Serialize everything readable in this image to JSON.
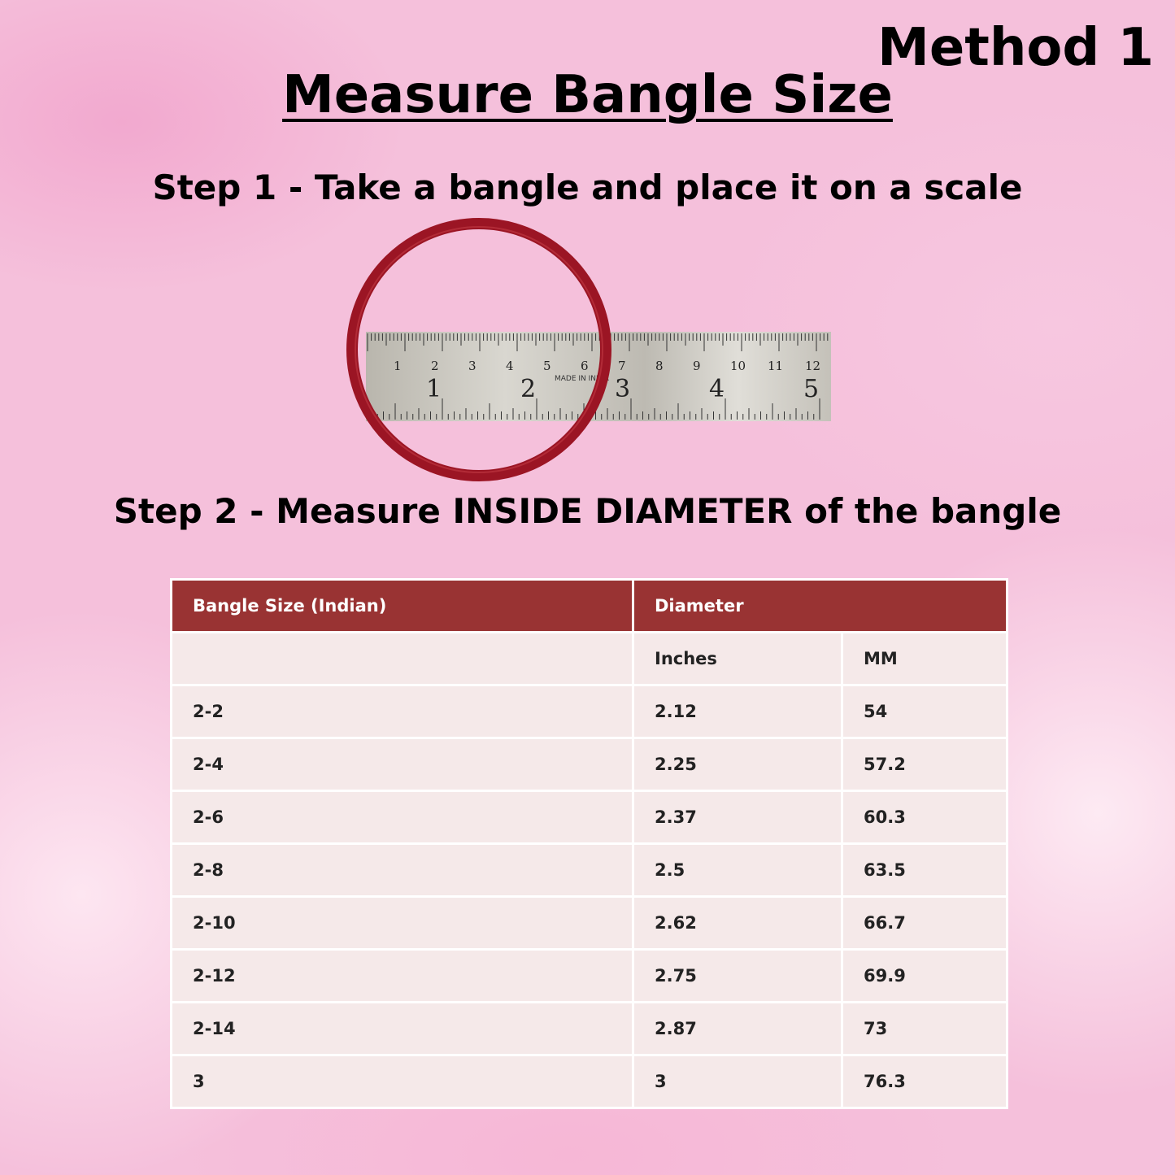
{
  "method_label": "Method 1",
  "title": "Measure Bangle Size",
  "step1": "Step 1 - Take a bangle and place it on a scale",
  "step2": "Step 2 - Measure INSIDE DIAMETER of the bangle",
  "photo": {
    "ruler_cm_labels": [
      "1",
      "2",
      "3",
      "4",
      "5",
      "6",
      "7",
      "8",
      "9",
      "10",
      "11",
      "12"
    ],
    "ruler_inch_labels": [
      "1",
      "2",
      "3",
      "4",
      "5"
    ],
    "ruler_imprint": "MADE IN INDIA",
    "bangle_color": "#9b1524",
    "ruler_color": "#c9c6bd"
  },
  "table": {
    "header_color": "#993333",
    "headers": [
      "Bangle Size (Indian)",
      "Diameter"
    ],
    "subheaders": [
      "",
      "Inches",
      "MM"
    ],
    "rows": [
      [
        "2-2",
        "2.12",
        "54"
      ],
      [
        "2-4",
        "2.25",
        "57.2"
      ],
      [
        "2-6",
        "2.37",
        "60.3"
      ],
      [
        "2-8",
        "2.5",
        "63.5"
      ],
      [
        "2-10",
        "2.62",
        "66.7"
      ],
      [
        "2-12",
        "2.75",
        "69.9"
      ],
      [
        "2-14",
        "2.87",
        "73"
      ],
      [
        "3",
        "3",
        "76.3"
      ]
    ]
  }
}
